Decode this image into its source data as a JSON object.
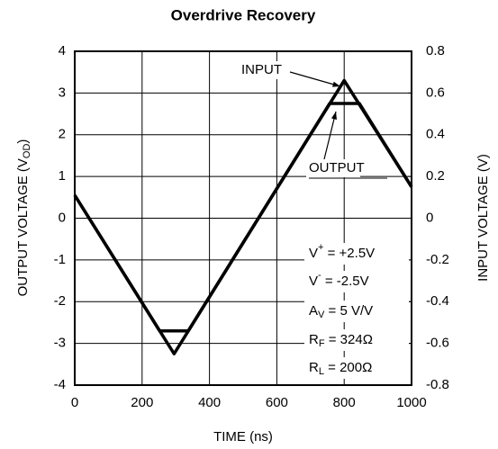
{
  "chart_data": {
    "type": "line",
    "title": "Overdrive Recovery",
    "x_label": "TIME (ns)",
    "y_label": {
      "text": "OUTPUT VOLTAGE (V",
      "sub": "OD",
      "end": ")"
    },
    "y2_label": "INPUT VOLTAGE (V)",
    "xlim": [
      0,
      1000
    ],
    "xticks": [
      0,
      200,
      400,
      600,
      800,
      1000
    ],
    "ylim": [
      -4,
      4
    ],
    "yticks": [
      -4,
      -3,
      -2,
      -1,
      0,
      1,
      2,
      3,
      4
    ],
    "y2lim": [
      -0.8,
      0.8
    ],
    "y2ticks": [
      -0.8,
      -0.6,
      -0.4,
      -0.2,
      0,
      0.2,
      0.4,
      0.6,
      0.8
    ],
    "grid": true,
    "series": [
      {
        "name": "INPUT",
        "color": "#000000",
        "axis": "y2",
        "x": [
          0,
          295,
          800,
          1000
        ],
        "values": [
          0.11,
          -0.65,
          0.66,
          0.15
        ]
      },
      {
        "name": "OUTPUT",
        "color": "#000000",
        "x": [
          0,
          252,
          337,
          757,
          845,
          1000
        ],
        "values": [
          0.55,
          -2.7,
          -2.7,
          2.75,
          2.75,
          0.75
        ]
      }
    ],
    "conditions": [
      {
        "symbol": "V",
        "sup": "+",
        "text": " = +2.5V"
      },
      {
        "symbol": "V",
        "sup": "-",
        "text": " = -2.5V"
      },
      {
        "symbol": "A",
        "sub": "V",
        "text": " = 5 V/V"
      },
      {
        "symbol": "R",
        "sub": "F",
        "text": " = 324Ω"
      },
      {
        "symbol": "R",
        "sub": "L",
        "text": " = 200Ω"
      }
    ]
  }
}
